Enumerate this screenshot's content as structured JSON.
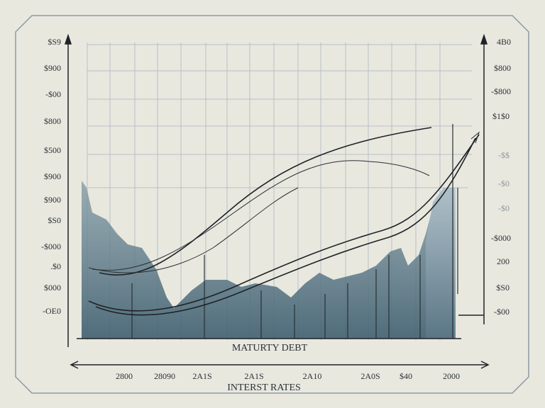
{
  "labels": {
    "y_left": [
      "$S9",
      "$900",
      "-$00",
      "$800",
      "$500",
      "$900",
      "$900",
      "$S0",
      "-$000",
      ".$0",
      "$000",
      "-OE0"
    ],
    "y_right": [
      "4B0",
      "$800",
      "-$800",
      "$1$0",
      "-$$",
      "-$0",
      "-$0",
      "-$000",
      "200",
      "$S0",
      "-$00"
    ],
    "x": [
      "2800",
      "28090",
      "2A1S",
      "2A1S",
      "2A10",
      "2A0S",
      "$40",
      "2000"
    ],
    "chart_caption": "MATURTY DEBT",
    "x_axis_title": "INTERST RATES"
  }
}
